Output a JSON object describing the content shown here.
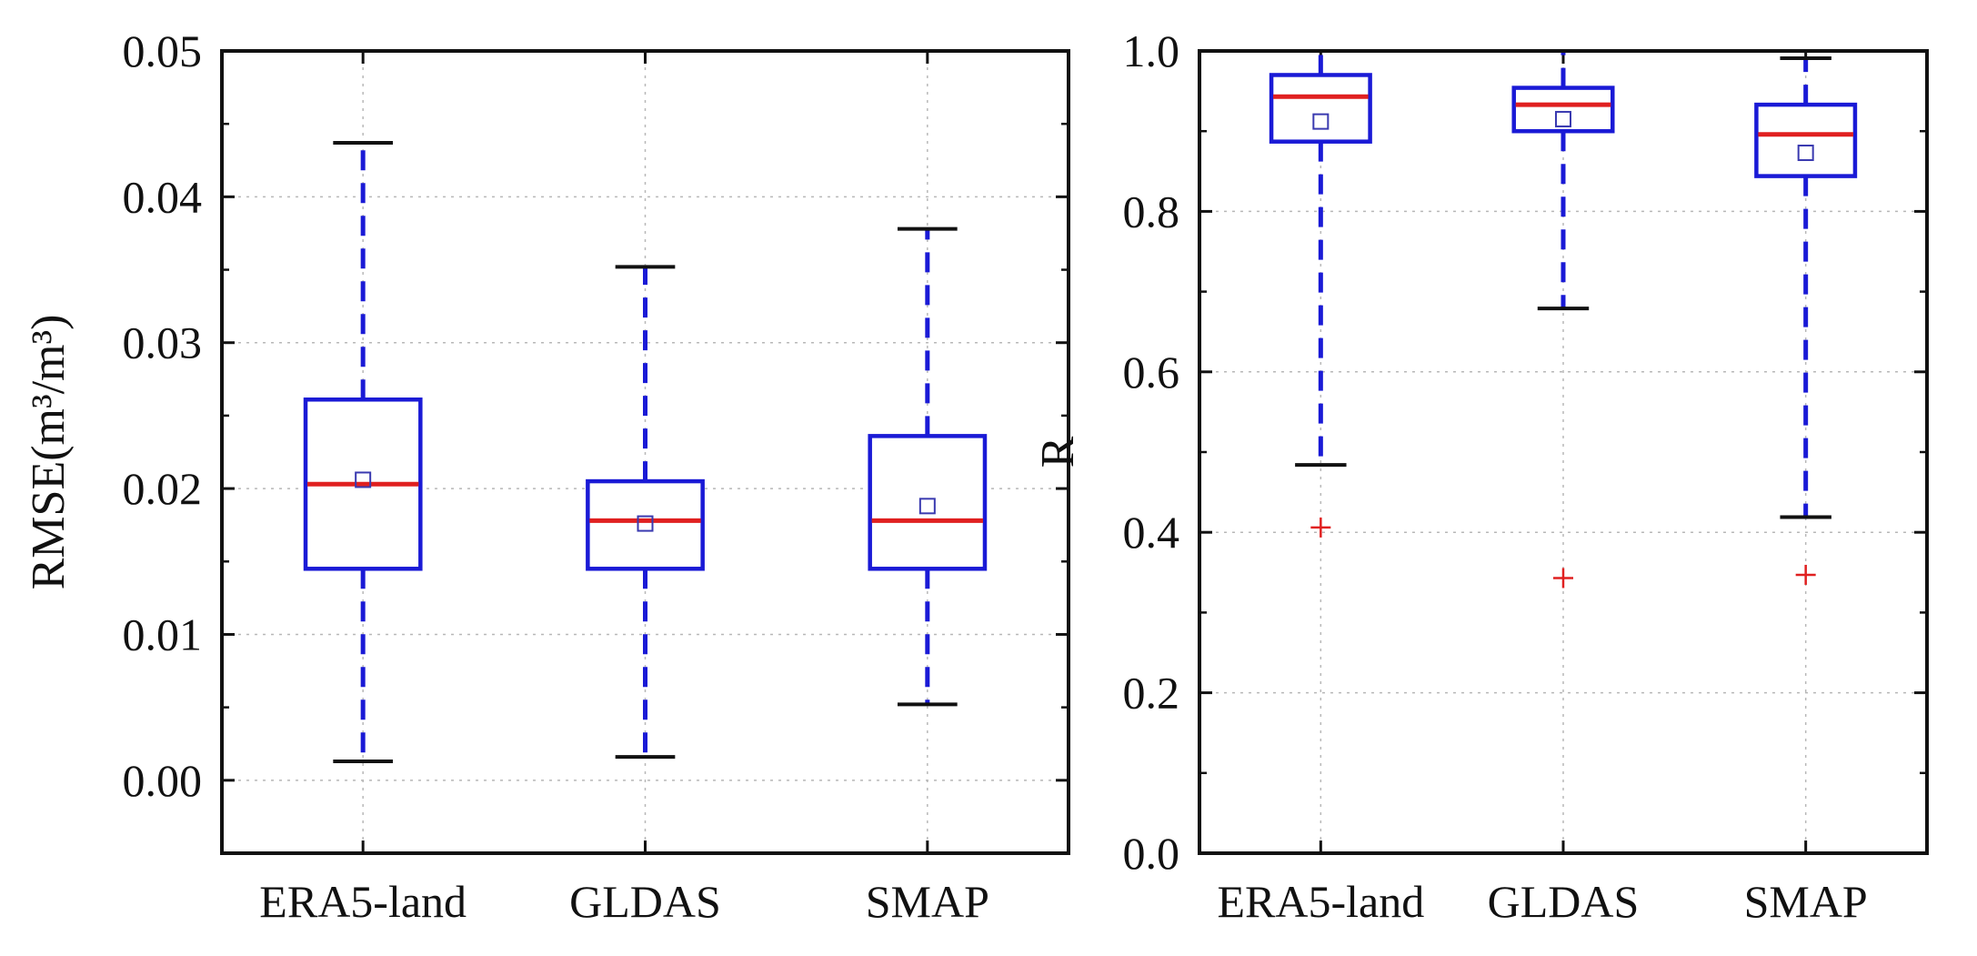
{
  "colors": {
    "box": "#1a1ad6",
    "median": "#e02020",
    "whisker": "#1a1ad6",
    "cap": "#111111",
    "outlier": "#e02020",
    "mean_marker": "#3a3ab0",
    "grid": "#b8b8b8"
  },
  "chart_data": [
    {
      "type": "box",
      "title": "",
      "xlabel": "",
      "ylabel": "RMSE(m³/m³)",
      "ylim": [
        -0.005,
        0.05
      ],
      "yticks": [
        0.0,
        0.01,
        0.02,
        0.03,
        0.04,
        0.05
      ],
      "ytick_labels": [
        "0.00",
        "0.01",
        "0.02",
        "0.03",
        "0.04",
        "0.05"
      ],
      "grid": true,
      "categories": [
        "ERA5-land",
        "GLDAS",
        "SMAP"
      ],
      "boxes": [
        {
          "category": "ERA5-land",
          "whisker_low": 0.0013,
          "q1": 0.0145,
          "median": 0.0203,
          "q3": 0.0261,
          "whisker_high": 0.0437,
          "mean": 0.0206,
          "outliers": []
        },
        {
          "category": "GLDAS",
          "whisker_low": 0.0016,
          "q1": 0.0145,
          "median": 0.0178,
          "q3": 0.0205,
          "whisker_high": 0.0352,
          "mean": 0.0176,
          "outliers": []
        },
        {
          "category": "SMAP",
          "whisker_low": 0.0052,
          "q1": 0.0145,
          "median": 0.0178,
          "q3": 0.0236,
          "whisker_high": 0.0378,
          "mean": 0.0188,
          "outliers": []
        }
      ]
    },
    {
      "type": "box",
      "title": "",
      "xlabel": "",
      "ylabel": "R",
      "ylim": [
        0.0,
        1.0
      ],
      "yticks": [
        0.0,
        0.2,
        0.4,
        0.6,
        0.8,
        1.0
      ],
      "ytick_labels": [
        "0.0",
        "0.2",
        "0.4",
        "0.6",
        "0.8",
        "1.0"
      ],
      "grid": true,
      "categories": [
        "ERA5-land",
        "GLDAS",
        "SMAP"
      ],
      "boxes": [
        {
          "category": "ERA5-land",
          "whisker_low": 0.484,
          "q1": 0.887,
          "median": 0.943,
          "q3": 0.97,
          "whisker_high": 1.0,
          "mean": 0.912,
          "outliers": [
            0.406
          ]
        },
        {
          "category": "GLDAS",
          "whisker_low": 0.679,
          "q1": 0.9,
          "median": 0.933,
          "q3": 0.954,
          "whisker_high": 1.0,
          "mean": 0.915,
          "outliers": [
            0.343
          ]
        },
        {
          "category": "SMAP",
          "whisker_low": 0.419,
          "q1": 0.844,
          "median": 0.896,
          "q3": 0.933,
          "whisker_high": 0.991,
          "mean": 0.873,
          "outliers": [
            0.347
          ]
        }
      ]
    }
  ]
}
